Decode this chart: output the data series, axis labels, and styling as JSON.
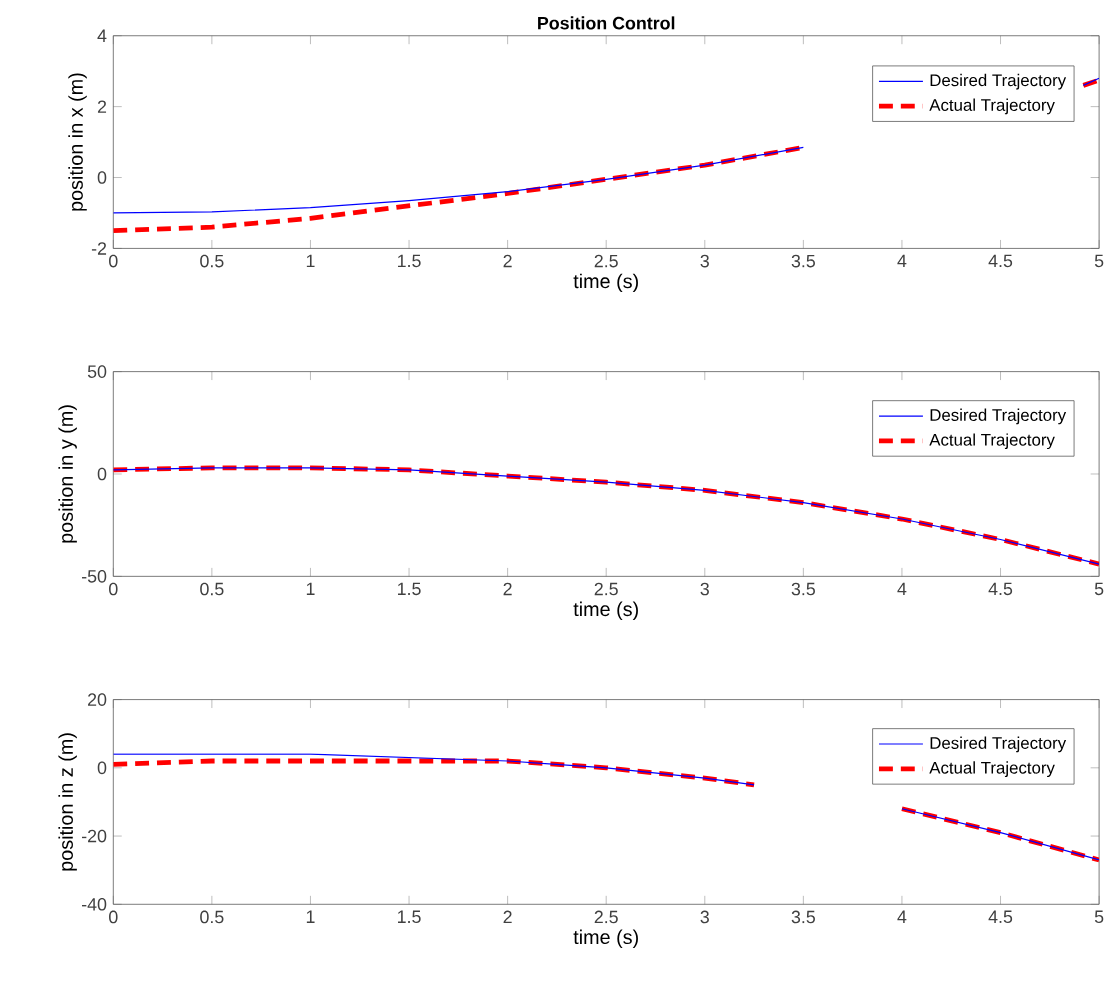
{
  "chart_data": [
    {
      "type": "line",
      "title": "Position Control",
      "xlabel": "time (s)",
      "ylabel": "position in x (m)",
      "xlim": [
        0,
        5
      ],
      "ylim": [
        -2,
        4
      ],
      "xticks": [
        0,
        0.5,
        1,
        1.5,
        2,
        2.5,
        3,
        3.5,
        4,
        4.5,
        5
      ],
      "yticks": [
        -2,
        0,
        2,
        4
      ],
      "legend": "top right",
      "grid": false,
      "x": [
        0,
        0.5,
        1,
        1.5,
        2,
        2.5,
        3,
        3.5,
        4.25,
        4.92,
        5
      ],
      "series": [
        {
          "name": "Desired Trajectory",
          "color": "#0000ff",
          "line_style": "solid",
          "values": [
            -1,
            -0.97,
            -0.85,
            -0.65,
            -0.4,
            -0.05,
            0.35,
            0.85,
            null,
            2.6,
            2.8
          ]
        },
        {
          "name": "Actual Trajectory",
          "color": "#ff0000",
          "line_style": "dashed",
          "values": [
            -1.5,
            -1.4,
            -1.15,
            -0.8,
            -0.45,
            -0.05,
            0.35,
            0.85,
            null,
            2.6,
            2.75
          ]
        }
      ]
    },
    {
      "type": "line",
      "xlabel": "time (s)",
      "ylabel": "position in y (m)",
      "xlim": [
        0,
        5
      ],
      "ylim": [
        -50,
        50
      ],
      "xticks": [
        0,
        0.5,
        1,
        1.5,
        2,
        2.5,
        3,
        3.5,
        4,
        4.5,
        5
      ],
      "yticks": [
        -50,
        0,
        50
      ],
      "legend": "top right",
      "grid": false,
      "x": [
        0,
        0.5,
        1,
        1.5,
        2,
        2.5,
        3,
        3.5,
        4,
        4.5,
        5
      ],
      "series": [
        {
          "name": "Desired Trajectory",
          "color": "#0000ff",
          "line_style": "solid",
          "values": [
            2,
            3,
            3,
            2,
            -1,
            -4,
            -8,
            -14,
            -22,
            -32,
            -44
          ]
        },
        {
          "name": "Actual Trajectory",
          "color": "#ff0000",
          "line_style": "dashed",
          "values": [
            2,
            3,
            3,
            2,
            -1,
            -4,
            -8,
            -14,
            -22,
            -32,
            -44
          ]
        }
      ]
    },
    {
      "type": "line",
      "xlabel": "time (s)",
      "ylabel": "position in z (m)",
      "xlim": [
        0,
        5
      ],
      "ylim": [
        -40,
        20
      ],
      "xticks": [
        0,
        0.5,
        1,
        1.5,
        2,
        2.5,
        3,
        3.5,
        4,
        4.5,
        5
      ],
      "yticks": [
        -40,
        -20,
        0,
        20
      ],
      "legend": "top right",
      "grid": false,
      "x": [
        0,
        0.5,
        1,
        1.5,
        2,
        2.5,
        3,
        3.25,
        3.6,
        4,
        4.5,
        5
      ],
      "series": [
        {
          "name": "Desired Trajectory",
          "color": "#0000ff",
          "line_style": "solid",
          "values": [
            4,
            4,
            4,
            3,
            2,
            0,
            -3,
            -5,
            null,
            -12,
            -19,
            -27
          ]
        },
        {
          "name": "Actual Trajectory",
          "color": "#ff0000",
          "line_style": "dashed",
          "values": [
            1,
            2,
            2,
            2,
            2,
            0,
            -3,
            -5,
            null,
            -12,
            -19,
            -27
          ]
        }
      ]
    }
  ]
}
